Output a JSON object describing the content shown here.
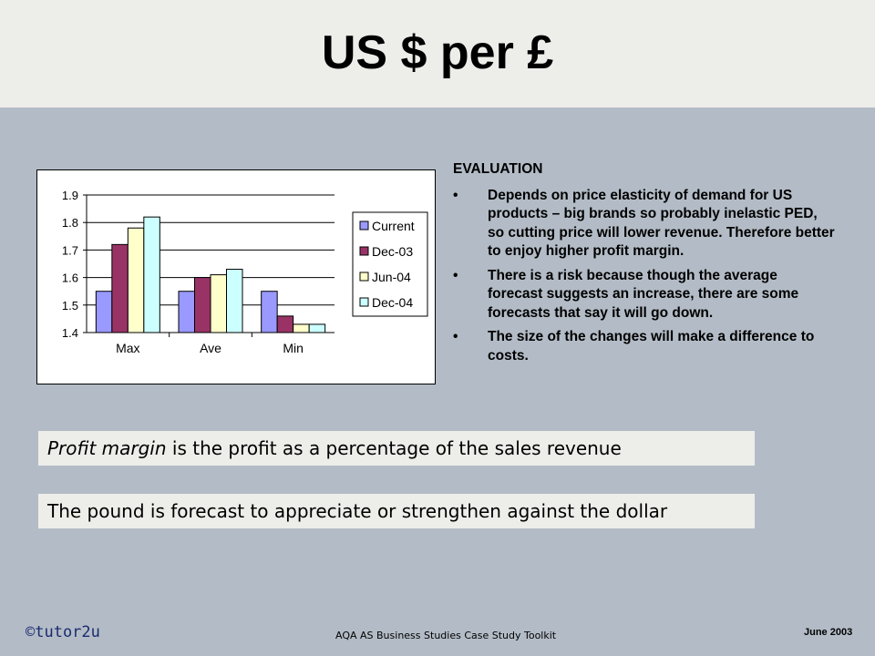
{
  "slide": {
    "title": "US $ per £"
  },
  "evaluation": {
    "heading": "EVALUATION",
    "bullet_char": "•",
    "bullets": [
      "Depends on price elasticity of demand for US products – big brands so probably inelastic PED, so cutting price will lower revenue.  Therefore better to enjoy higher profit margin.",
      "There is a risk because though the average forecast suggests an increase, there are some forecasts that say it will go down.",
      "The size of the changes will make a difference to costs."
    ]
  },
  "definition": {
    "term": "Profit margin",
    "rest": " is the profit as a percentage of the sales revenue"
  },
  "forecast_note": "The pound is forecast to appreciate or strengthen against the dollar",
  "footer": {
    "copyright": "©tutor2u",
    "toolkit": "AQA AS Business  Studies  Case Study Toolkit",
    "date": "June 2003"
  },
  "chart_data": {
    "type": "bar",
    "categories": [
      "Max",
      "Ave",
      "Min"
    ],
    "ylim": [
      1.4,
      1.9
    ],
    "yticks": [
      "1.4",
      "1.5",
      "1.6",
      "1.7",
      "1.8",
      "1.9"
    ],
    "grid": true,
    "legend_position": "right",
    "series": [
      {
        "name": "Current",
        "values": [
          1.55,
          1.55,
          1.55
        ],
        "color": "#9999ff"
      },
      {
        "name": "Dec-03",
        "values": [
          1.72,
          1.6,
          1.46
        ],
        "color": "#993366"
      },
      {
        "name": "Jun-04",
        "values": [
          1.78,
          1.61,
          1.43
        ],
        "color": "#ffffcc"
      },
      {
        "name": "Dec-04",
        "values": [
          1.82,
          1.63,
          1.43
        ],
        "color": "#ccffff"
      }
    ]
  }
}
